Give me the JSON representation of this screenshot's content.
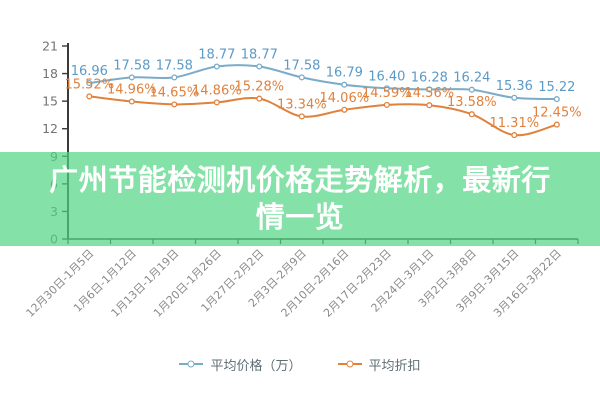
{
  "banner": {
    "title": "广州节能检测机价格走势解析，最新行情一览",
    "background": "rgba(80, 212, 130, 0.7)",
    "text_color": "#ffffff"
  },
  "chart_data": {
    "type": "line",
    "title": "",
    "xlabel": "",
    "ylabel": "",
    "ylim": [
      0,
      21
    ],
    "y_ticks": [
      0,
      3,
      6,
      9,
      12,
      15,
      18,
      21
    ],
    "grid": false,
    "legend_position": "bottom",
    "axis_color": "#3a3a3a",
    "y_tick_label_color": "#737373",
    "x_tick_label_color": "#8a8a8a",
    "categories": [
      "12月30日-1月5日",
      "1月6日-1月12日",
      "1月13日-1月19日",
      "1月20日-1月26日",
      "1月27日-2月2日",
      "2月3日-2月9日",
      "2月10日-2月16日",
      "2月17日-2月23日",
      "2月24日-3月1日",
      "3月2日-3月8日",
      "3月9日-3月15日",
      "3月16日-3月22日"
    ],
    "series": [
      {
        "name": "平均价格（万）",
        "color": "#7aabc9",
        "label_color": "#5b9ac6",
        "label_suffix": "",
        "values": [
          16.96,
          17.58,
          17.58,
          18.77,
          18.77,
          17.58,
          16.79,
          16.4,
          16.28,
          16.24,
          15.36,
          15.22
        ]
      },
      {
        "name": "平均折扣",
        "color": "#e0813c",
        "label_color": "#e0813c",
        "label_suffix": "%",
        "values": [
          15.52,
          14.96,
          14.65,
          14.86,
          15.28,
          13.34,
          14.06,
          14.59,
          14.56,
          13.58,
          11.31,
          12.45
        ]
      }
    ]
  }
}
